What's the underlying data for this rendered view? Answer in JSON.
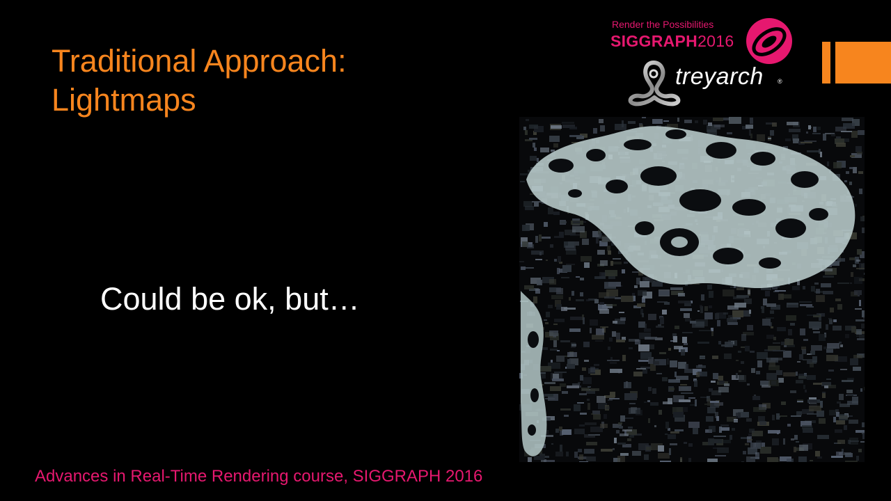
{
  "slide": {
    "title_line1": "Traditional Approach:",
    "title_line2": "Lightmaps",
    "body": "Could be ok, but…",
    "footer": "Advances in Real-Time Rendering course, SIGGRAPH 2016"
  },
  "branding": {
    "tagline": "Render the Possibilities",
    "siggraph_word": "SIGGRAPH",
    "siggraph_year": "2016",
    "treyarch_word": "treyarch",
    "treyarch_reg": "®"
  },
  "colors": {
    "title": "#F7851E",
    "body": "#FFFFFF",
    "footer": "#E6186F",
    "siggraph": "#E6186F",
    "accent_bar": "#F7851E",
    "background": "#000000"
  },
  "images": {
    "lightmap": "lightmap-texture-atlas"
  }
}
